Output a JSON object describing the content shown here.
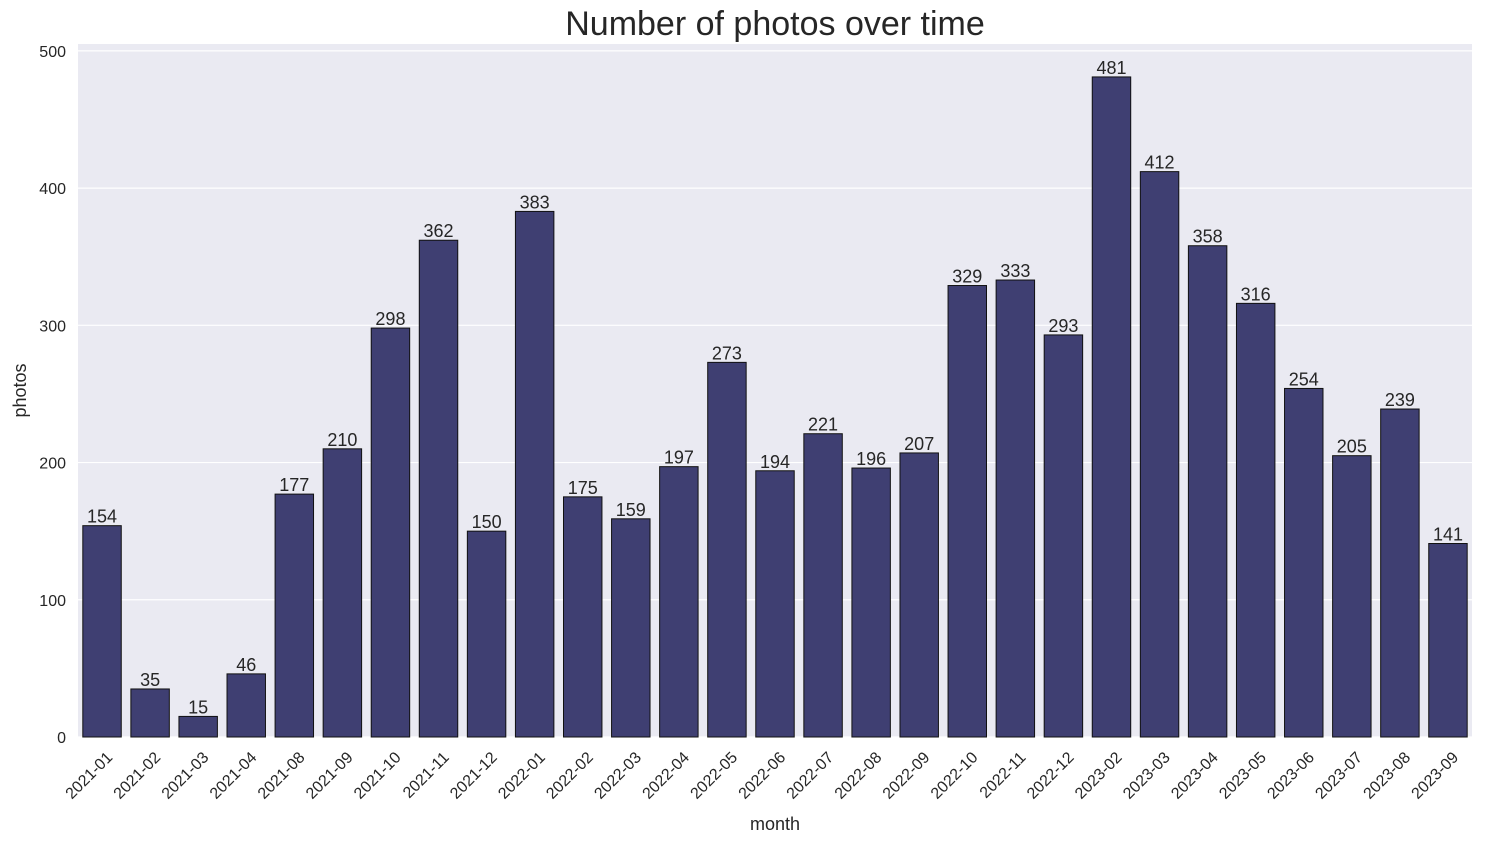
{
  "chart_data": {
    "type": "bar",
    "title": "Number of photos over time",
    "xlabel": "month",
    "ylabel": "photos",
    "ylim": [
      0,
      505
    ],
    "yticks": [
      0,
      100,
      200,
      300,
      400,
      500
    ],
    "grid": true,
    "bar_color": "#3f3f72",
    "bar_edge_color": "#111111",
    "background_color": "#eaeaf2",
    "categories": [
      "2021-01",
      "2021-02",
      "2021-03",
      "2021-04",
      "2021-08",
      "2021-09",
      "2021-10",
      "2021-11",
      "2021-12",
      "2022-01",
      "2022-02",
      "2022-03",
      "2022-04",
      "2022-05",
      "2022-06",
      "2022-07",
      "2022-08",
      "2022-09",
      "2022-10",
      "2022-11",
      "2022-12",
      "2023-02",
      "2023-03",
      "2023-04",
      "2023-05",
      "2023-06",
      "2023-07",
      "2023-08",
      "2023-09"
    ],
    "values": [
      154,
      35,
      15,
      46,
      177,
      210,
      298,
      362,
      150,
      383,
      175,
      159,
      197,
      273,
      194,
      221,
      196,
      207,
      329,
      333,
      293,
      481,
      412,
      358,
      316,
      254,
      205,
      239,
      141
    ]
  }
}
